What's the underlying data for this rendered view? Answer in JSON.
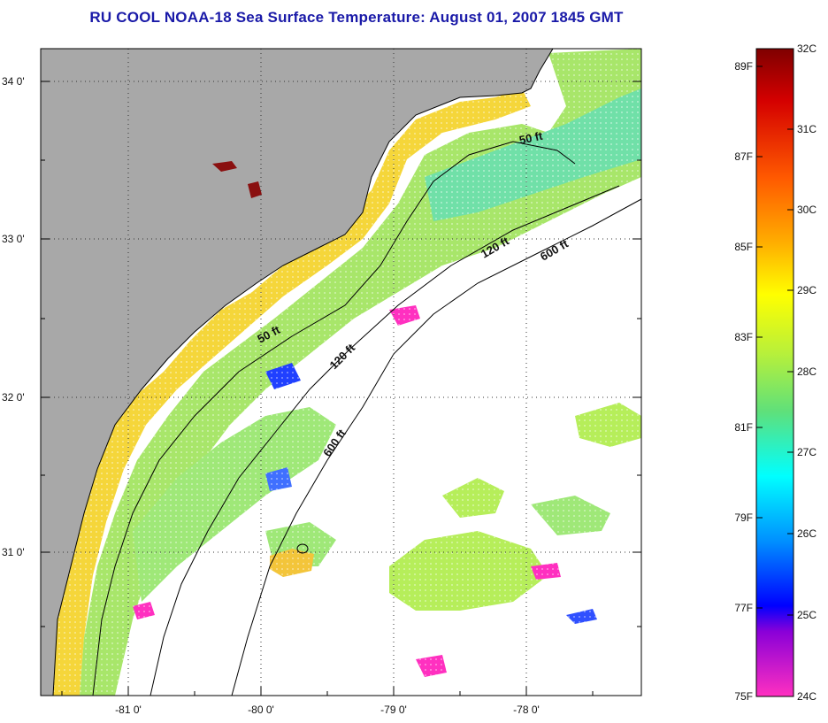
{
  "title": "RU COOL  NOAA-18  Sea Surface Temperature:  August 01, 2007 1845 GMT",
  "map": {
    "lat_labels": [
      "34 0'",
      "33 0'",
      "32 0'",
      "31 0'"
    ],
    "lon_labels": [
      "-81 0'",
      "-80 0'",
      "-79 0'",
      "-78 0'"
    ],
    "contours": [
      "50 ft",
      "50 ft",
      "120 ft",
      "120 ft",
      "600 ft",
      "600 ft"
    ],
    "colors": {
      "land": "#a8a8a8",
      "cloud": "#ffffff",
      "contour": "#000000"
    }
  },
  "colorbar": {
    "fahrenheit": [
      "89F",
      "87F",
      "85F",
      "83F",
      "81F",
      "79F",
      "77F",
      "75F"
    ],
    "celsius": [
      "32C",
      "31C",
      "30C",
      "29C",
      "28C",
      "27C",
      "26C",
      "25C",
      "24C"
    ],
    "gradient_stops": [
      "#7f0000",
      "#d40000",
      "#ff5a00",
      "#ffae00",
      "#ffff00",
      "#b8f03a",
      "#5fe07a",
      "#00ffff",
      "#0090ff",
      "#0000ff",
      "#8a00d8",
      "#ff30c0"
    ]
  }
}
